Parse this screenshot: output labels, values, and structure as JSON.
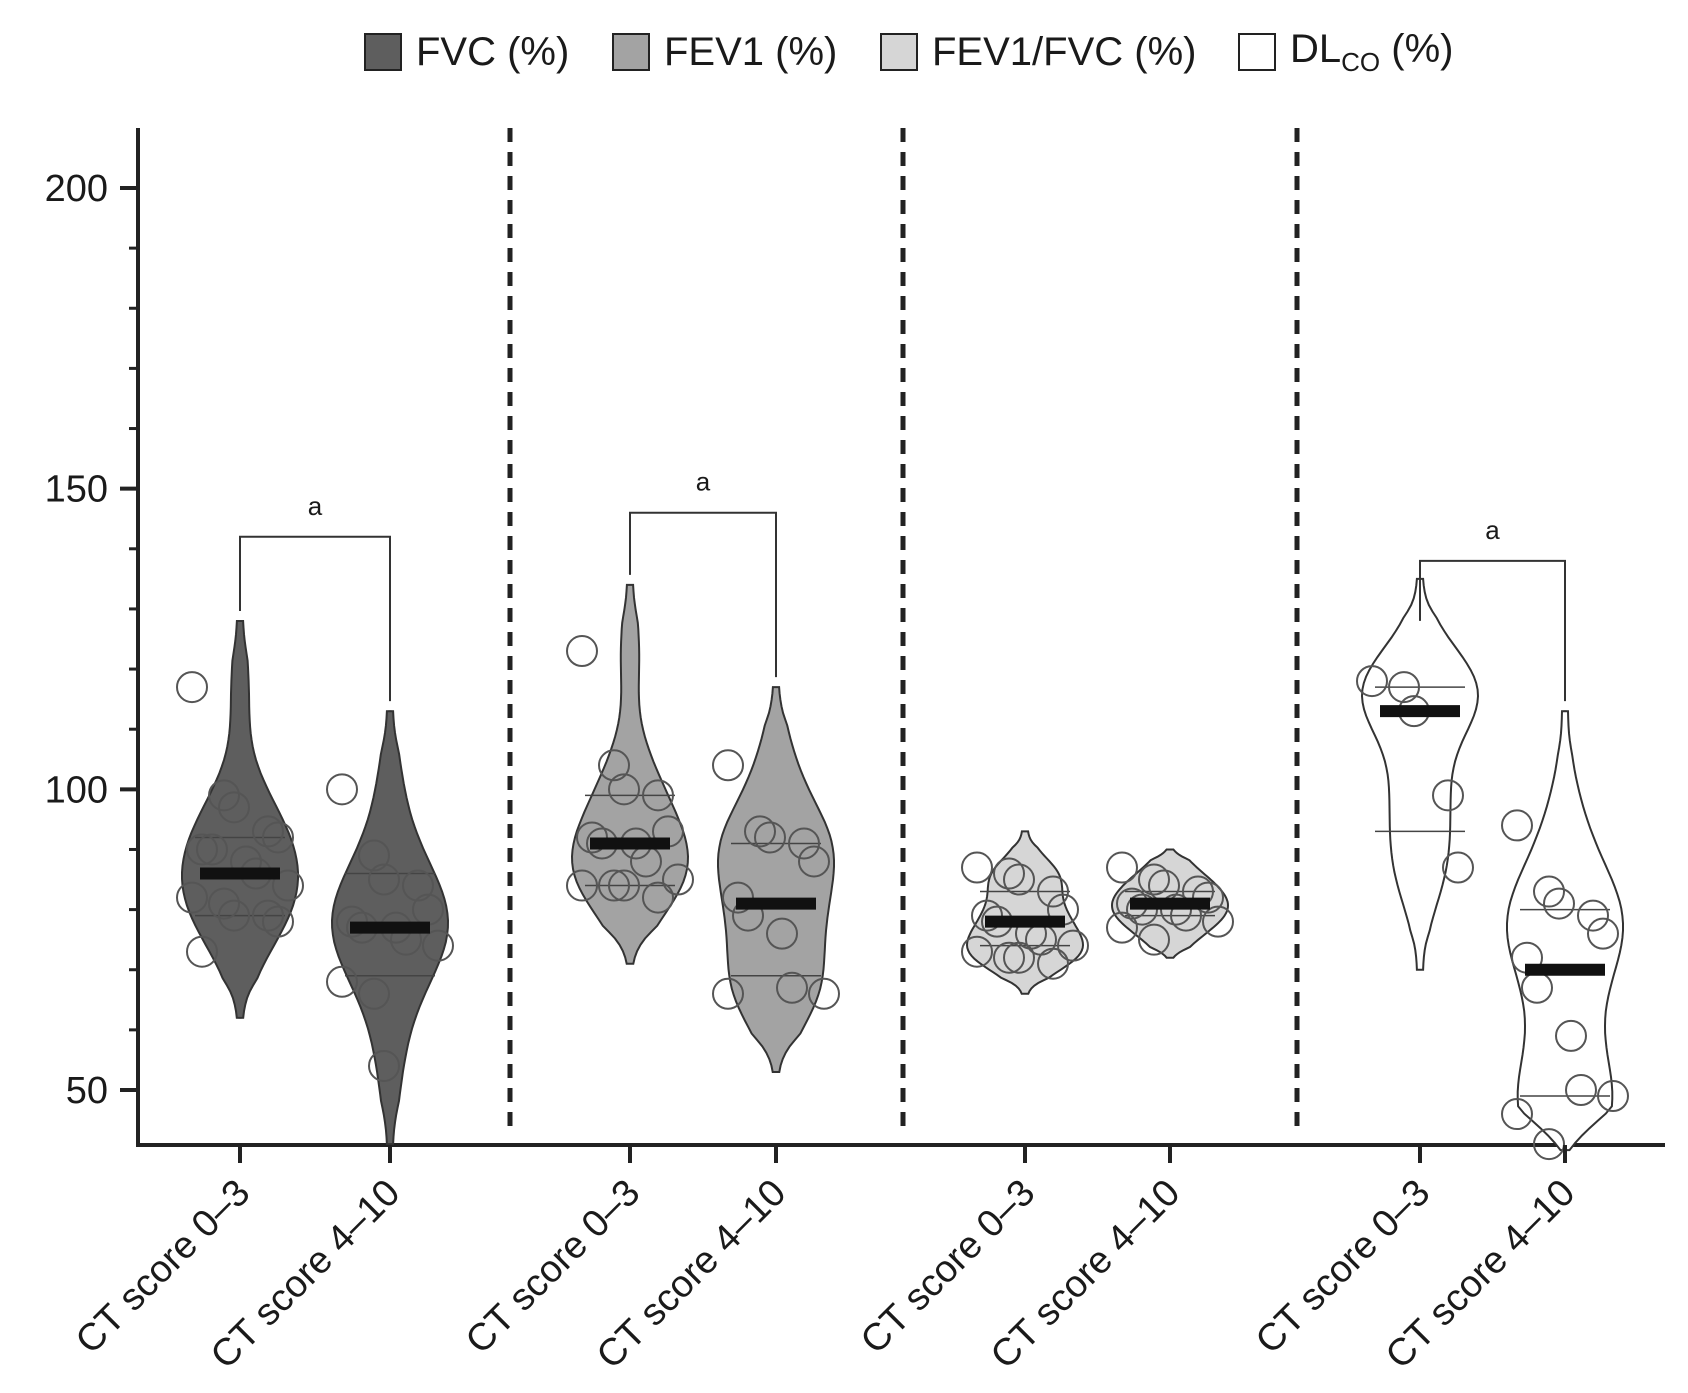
{
  "chart_data": {
    "type": "violin",
    "ylim": [
      40,
      210
    ],
    "yticks": [
      "50",
      "100",
      "150",
      "200"
    ],
    "ytick_values": [
      50,
      100,
      150,
      200
    ],
    "grid": false,
    "legend_position": "top-center",
    "legend": [
      {
        "key": "fvc",
        "label": "FVC (%)",
        "color": "#5e5e5e"
      },
      {
        "key": "fev1",
        "label": "FEV1 (%)",
        "color": "#a3a3a3"
      },
      {
        "key": "ratio",
        "label": "FEV1/FVC (%)",
        "color": "#d6d6d6"
      },
      {
        "key": "dlco",
        "label_main": "DL",
        "label_sub": "CO",
        "label_tail": " (%)",
        "color": "#ffffff"
      }
    ],
    "significance_label": "a",
    "groups": [
      {
        "key": "fvc",
        "categories": [
          "CT score 0–3",
          "CT score 4–10"
        ],
        "significance": {
          "label": "a",
          "y": 142
        },
        "violins": [
          {
            "min": 62,
            "max": 128,
            "median": 86,
            "q1": 79,
            "q3": 92,
            "points": [
              117,
              99,
              97,
              93,
              92,
              90,
              90,
              88,
              86,
              84,
              82,
              81,
              79,
              79,
              78,
              73
            ]
          },
          {
            "min": 41,
            "max": 113,
            "median": 77,
            "q1": 69,
            "q3": 86,
            "points": [
              100,
              89,
              85,
              84,
              80,
              78,
              77,
              77,
              75,
              74,
              68,
              66,
              54
            ]
          }
        ]
      },
      {
        "key": "fev1",
        "categories": [
          "CT score 0–3",
          "CT score 4–10"
        ],
        "significance": {
          "label": "a",
          "y": 146
        },
        "violins": [
          {
            "min": 71,
            "max": 134,
            "median": 91,
            "q1": 84,
            "q3": 99,
            "points": [
              123,
              104,
              100,
              99,
              93,
              92,
              91,
              91,
              88,
              85,
              84,
              84,
              84,
              82
            ]
          },
          {
            "min": 53,
            "max": 117,
            "median": 81,
            "q1": 69,
            "q3": 91,
            "points": [
              104,
              93,
              92,
              91,
              88,
              82,
              79,
              76,
              67,
              66,
              66
            ]
          }
        ]
      },
      {
        "key": "ratio",
        "categories": [
          "CT score 0–3",
          "CT score 4–10"
        ],
        "significance": null,
        "violins": [
          {
            "min": 66,
            "max": 93,
            "median": 78,
            "q1": 74,
            "q3": 83,
            "points": [
              87,
              86,
              85,
              83,
              80,
              79,
              78,
              76,
              75,
              74,
              73,
              72,
              72,
              71
            ]
          },
          {
            "min": 72,
            "max": 90,
            "median": 81,
            "q1": 79,
            "q3": 83,
            "points": [
              87,
              85,
              84,
              83,
              82,
              81,
              80,
              80,
              79,
              78,
              77,
              75
            ]
          }
        ]
      },
      {
        "key": "dlco",
        "categories": [
          "CT score 0–3",
          "CT score 4–10"
        ],
        "significance": {
          "label": "a",
          "y": 138
        },
        "violins": [
          {
            "min": 70,
            "max": 135,
            "median": 113,
            "q1": 93,
            "q3": 117,
            "points": [
              118,
              117,
              113,
              99,
              87
            ]
          },
          {
            "min": 40,
            "max": 113,
            "median": 70,
            "q1": 49,
            "q3": 80,
            "points": [
              94,
              83,
              81,
              79,
              76,
              72,
              67,
              59,
              50,
              49,
              46,
              41
            ]
          }
        ]
      }
    ]
  }
}
